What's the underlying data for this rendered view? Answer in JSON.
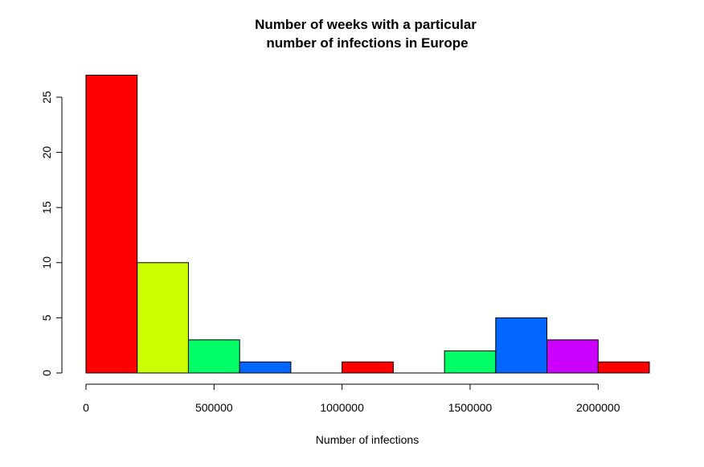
{
  "chart_data": {
    "type": "bar",
    "title_lines": [
      "Number of weeks with a particular",
      "number of infections in Europe"
    ],
    "xlabel": "Number of infections",
    "ylabel": "",
    "bins": [
      {
        "from": 0,
        "to": 200000,
        "count": 27,
        "color": "#FF0000"
      },
      {
        "from": 200000,
        "to": 400000,
        "count": 10,
        "color": "#CCFF00"
      },
      {
        "from": 400000,
        "to": 600000,
        "count": 3,
        "color": "#00FF66"
      },
      {
        "from": 600000,
        "to": 800000,
        "count": 1,
        "color": "#0066FF"
      },
      {
        "from": 800000,
        "to": 1000000,
        "count": 0,
        "color": "#CC00FF"
      },
      {
        "from": 1000000,
        "to": 1200000,
        "count": 1,
        "color": "#FF0000"
      },
      {
        "from": 1200000,
        "to": 1400000,
        "count": 0,
        "color": "#CCFF00"
      },
      {
        "from": 1400000,
        "to": 1600000,
        "count": 2,
        "color": "#00FF66"
      },
      {
        "from": 1600000,
        "to": 1800000,
        "count": 5,
        "color": "#0066FF"
      },
      {
        "from": 1800000,
        "to": 2000000,
        "count": 3,
        "color": "#CC00FF"
      },
      {
        "from": 2000000,
        "to": 2200000,
        "count": 1,
        "color": "#FF0000"
      }
    ],
    "xlim": [
      0,
      2200000
    ],
    "ylim": [
      0,
      27
    ],
    "x_ticks": [
      {
        "value": 0,
        "label": "0"
      },
      {
        "value": 500000,
        "label": "500000"
      },
      {
        "value": 1000000,
        "label": "1000000"
      },
      {
        "value": 1500000,
        "label": "1500000"
      },
      {
        "value": 2000000,
        "label": "2000000"
      }
    ],
    "y_ticks": [
      {
        "value": 0,
        "label": "0"
      },
      {
        "value": 5,
        "label": "5"
      },
      {
        "value": 10,
        "label": "10"
      },
      {
        "value": 15,
        "label": "15"
      },
      {
        "value": 20,
        "label": "20"
      },
      {
        "value": 25,
        "label": "25"
      }
    ],
    "grid": false,
    "legend": "none"
  }
}
